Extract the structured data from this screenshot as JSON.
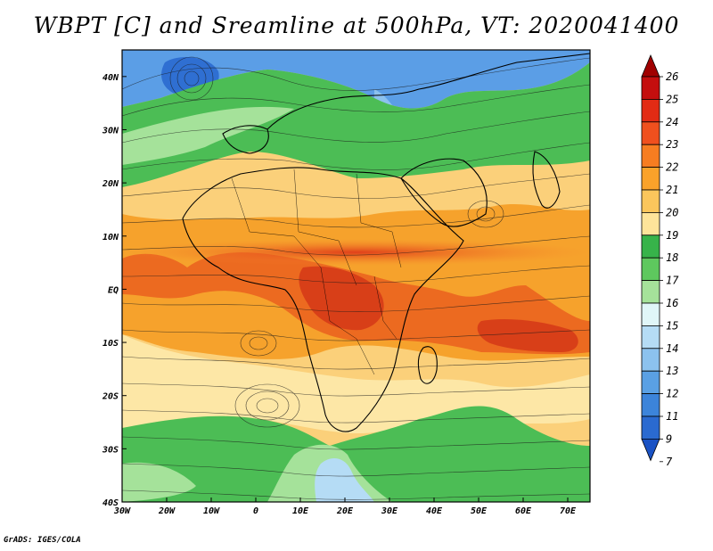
{
  "title": "WBPT [C] and Sreamline at 500hPa, VT: 2020041400",
  "footer": "GrADS: IGES/COLA",
  "map": {
    "lon_range": [
      -30,
      75
    ],
    "lat_range": [
      -40,
      45
    ],
    "lat_ticks": [
      {
        "value": 40,
        "label": "40N"
      },
      {
        "value": 30,
        "label": "30N"
      },
      {
        "value": 20,
        "label": "20N"
      },
      {
        "value": 10,
        "label": "10N"
      },
      {
        "value": 0,
        "label": "EQ"
      },
      {
        "value": -10,
        "label": "10S"
      },
      {
        "value": -20,
        "label": "20S"
      },
      {
        "value": -30,
        "label": "30S"
      },
      {
        "value": -40,
        "label": "40S"
      }
    ],
    "lon_ticks": [
      {
        "value": -30,
        "label": "30W"
      },
      {
        "value": -20,
        "label": "20W"
      },
      {
        "value": -10,
        "label": "10W"
      },
      {
        "value": 0,
        "label": "0"
      },
      {
        "value": 10,
        "label": "10E"
      },
      {
        "value": 20,
        "label": "20E"
      },
      {
        "value": 30,
        "label": "30E"
      },
      {
        "value": 40,
        "label": "40E"
      },
      {
        "value": 50,
        "label": "50E"
      },
      {
        "value": 60,
        "label": "60E"
      },
      {
        "value": 70,
        "label": "70E"
      }
    ]
  },
  "colorbar": {
    "levels": [
      {
        "label": "26",
        "color": "#a00000"
      },
      {
        "label": "25",
        "color": "#c40e0e"
      },
      {
        "label": "24",
        "color": "#e22b14"
      },
      {
        "label": "23",
        "color": "#f0501e"
      },
      {
        "label": "22",
        "color": "#f77d21"
      },
      {
        "label": "21",
        "color": "#faa22a"
      },
      {
        "label": "20",
        "color": "#fbc65c"
      },
      {
        "label": "19",
        "color": "#fde49a"
      },
      {
        "label": "18",
        "color": "#37b34a"
      },
      {
        "label": "17",
        "color": "#5ec85e"
      },
      {
        "label": "16",
        "color": "#a5e29a"
      },
      {
        "label": "15",
        "color": "#e0f6f8"
      },
      {
        "label": "14",
        "color": "#b5dcf5"
      },
      {
        "label": "13",
        "color": "#8cc2ee"
      },
      {
        "label": "12",
        "color": "#5aa0e4"
      },
      {
        "label": "11",
        "color": "#3c84da"
      },
      {
        "label": "9",
        "color": "#2a6ad0"
      },
      {
        "label": "7",
        "color": "#1a52c4"
      }
    ]
  }
}
